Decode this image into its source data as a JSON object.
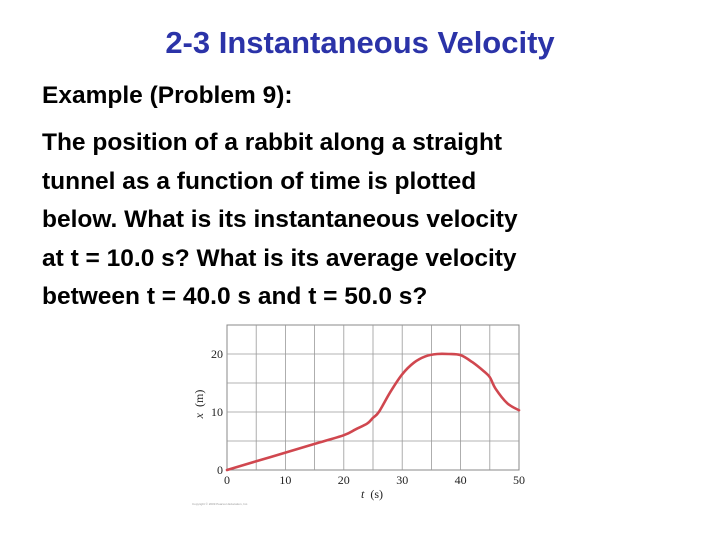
{
  "slide": {
    "title": "2-3 Instantaneous Velocity",
    "subtitle": "Example (Problem 9):",
    "problem_lines": [
      "The position of a rabbit along a straight",
      "tunnel as a function of time is plotted",
      "below. What is its instantaneous velocity",
      "at t = 10.0 s? What is its average velocity",
      "between t = 40.0 s and t = 50.0 s?"
    ]
  },
  "chart_data": {
    "type": "line",
    "xlabel_var": "t",
    "xlabel_unit": "(s)",
    "ylabel_var": "x",
    "ylabel_unit": "(m)",
    "xlim": [
      0,
      50
    ],
    "ylim": [
      0,
      25
    ],
    "x_ticks": [
      0,
      10,
      20,
      30,
      40,
      50
    ],
    "y_ticks": [
      0,
      10,
      20
    ],
    "grid": true,
    "line_color": "#d0474f",
    "series": [
      {
        "x": [
          0,
          5,
          10,
          15,
          20,
          22,
          24,
          25,
          26,
          28,
          30,
          32,
          34,
          36,
          38,
          40,
          42,
          44,
          45,
          46,
          48,
          50
        ],
        "y": [
          0,
          1.5,
          3,
          4.5,
          6,
          7,
          8,
          9,
          10,
          13.5,
          16.5,
          18.5,
          19.6,
          20,
          20,
          19.8,
          18.6,
          17,
          16,
          14,
          11.5,
          10.3
        ]
      }
    ],
    "copyright": "Copyright © 2009 Pearson Education, Inc."
  }
}
